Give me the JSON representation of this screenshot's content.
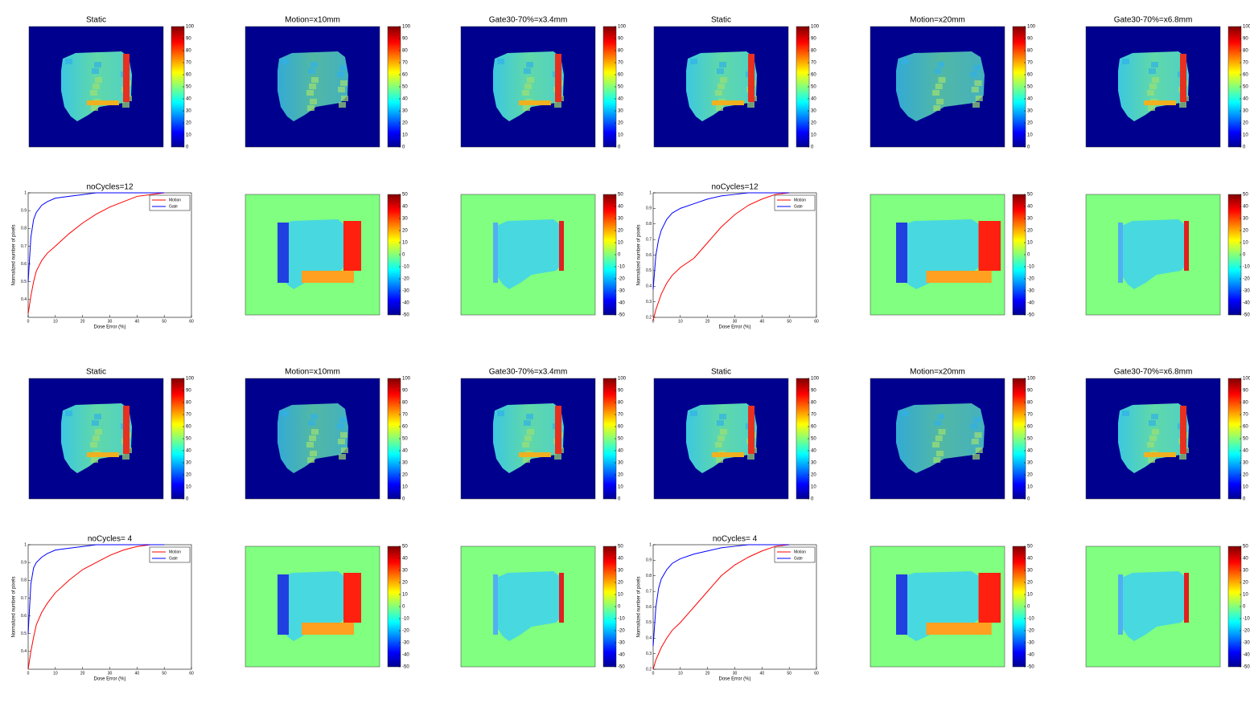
{
  "maps": [
    {
      "title": "Static",
      "scale": "dose"
    },
    {
      "title": "Motion=x10mm",
      "scale": "dose"
    },
    {
      "title": "Gate30-70%=x3.4mm",
      "scale": "dose"
    },
    {
      "title": "Static",
      "scale": "dose"
    },
    {
      "title": "Motion=x20mm",
      "scale": "dose"
    },
    {
      "title": "Gate30-70%=x6.8mm",
      "scale": "dose"
    },
    {
      "scale": "diff"
    },
    {
      "scale": "diff"
    },
    {
      "scale": "diff"
    },
    {
      "scale": "diff"
    },
    {
      "title": "Static",
      "scale": "dose"
    },
    {
      "title": "Motion=x10mm",
      "scale": "dose"
    },
    {
      "title": "Gate30-70%=x3.4mm",
      "scale": "dose"
    },
    {
      "title": "Static",
      "scale": "dose"
    },
    {
      "title": "Motion=x20mm",
      "scale": "dose"
    },
    {
      "title": "Gate30-70%=x6.8mm",
      "scale": "dose"
    },
    {
      "scale": "diff"
    },
    {
      "scale": "diff"
    },
    {
      "scale": "diff"
    },
    {
      "scale": "diff"
    }
  ],
  "colorbars": {
    "dose": {
      "ticks": [
        0,
        10,
        20,
        30,
        40,
        50,
        60,
        70,
        80,
        90,
        100
      ]
    },
    "diff": {
      "ticks": [
        -50,
        -40,
        -30,
        -20,
        -10,
        0,
        10,
        20,
        30,
        40,
        50
      ]
    }
  },
  "chart_data": [
    {
      "type": "line",
      "title": "noCycles=12",
      "x_label": "Dose Error (%)",
      "y_label": "Normalized number of pixels",
      "x": [
        0,
        1,
        2,
        3,
        5,
        7,
        10,
        15,
        20,
        25,
        30,
        35,
        40,
        45,
        50
      ],
      "series": [
        {
          "name": "Motion",
          "color": "#ff0000",
          "values": [
            0.32,
            0.42,
            0.5,
            0.56,
            0.62,
            0.66,
            0.7,
            0.77,
            0.83,
            0.88,
            0.92,
            0.95,
            0.98,
            0.99,
            1
          ]
        },
        {
          "name": "Gate",
          "color": "#0000ff",
          "values": [
            0.5,
            0.75,
            0.85,
            0.89,
            0.93,
            0.95,
            0.97,
            0.98,
            0.99,
            1,
            1,
            1,
            1,
            1,
            1
          ]
        }
      ],
      "xlim": [
        0,
        60
      ],
      "xticks": [
        0,
        10,
        20,
        30,
        40,
        50,
        60
      ],
      "ylim": [
        0.3,
        1
      ],
      "yticks": [
        0.4,
        0.5,
        0.6,
        0.7,
        0.8,
        0.9,
        1
      ],
      "legend": "upper right"
    },
    {
      "type": "line",
      "title": "noCycles=12",
      "x_label": "Dose Error (%)",
      "y_label": "Normalized number of pixels",
      "x": [
        0,
        1,
        2,
        3,
        5,
        7,
        10,
        15,
        20,
        25,
        30,
        35,
        40,
        45,
        50
      ],
      "series": [
        {
          "name": "Motion",
          "color": "#ff0000",
          "values": [
            0.18,
            0.25,
            0.3,
            0.35,
            0.42,
            0.47,
            0.52,
            0.58,
            0.68,
            0.78,
            0.86,
            0.92,
            0.96,
            0.99,
            1
          ]
        },
        {
          "name": "Gate",
          "color": "#0000ff",
          "values": [
            0.38,
            0.6,
            0.7,
            0.76,
            0.83,
            0.87,
            0.9,
            0.93,
            0.96,
            0.98,
            0.99,
            1,
            1,
            1,
            1
          ]
        }
      ],
      "xlim": [
        0,
        60
      ],
      "xticks": [
        0,
        10,
        20,
        30,
        40,
        50,
        60
      ],
      "ylim": [
        0.2,
        1
      ],
      "yticks": [
        0.2,
        0.3,
        0.4,
        0.5,
        0.6,
        0.7,
        0.8,
        0.9,
        1
      ],
      "legend": "upper right"
    },
    {
      "type": "line",
      "title": "noCycles= 4",
      "x_label": "Dose Error (%)",
      "y_label": "Normalized number of pixels",
      "x": [
        0,
        1,
        2,
        3,
        5,
        7,
        10,
        15,
        20,
        25,
        30,
        35,
        40,
        45,
        50
      ],
      "series": [
        {
          "name": "Motion",
          "color": "#ff0000",
          "values": [
            0.3,
            0.4,
            0.48,
            0.55,
            0.62,
            0.67,
            0.73,
            0.8,
            0.86,
            0.9,
            0.94,
            0.97,
            0.99,
            1,
            1
          ]
        },
        {
          "name": "Gate",
          "color": "#0000ff",
          "values": [
            0.5,
            0.78,
            0.87,
            0.9,
            0.93,
            0.95,
            0.97,
            0.98,
            0.99,
            1,
            1,
            1,
            1,
            1,
            1
          ]
        }
      ],
      "xlim": [
        0,
        60
      ],
      "xticks": [
        0,
        10,
        20,
        30,
        40,
        50,
        60
      ],
      "ylim": [
        0.3,
        1
      ],
      "yticks": [
        0.4,
        0.5,
        0.6,
        0.7,
        0.8,
        0.9,
        1
      ],
      "legend": "upper right"
    },
    {
      "type": "line",
      "title": "noCycles= 4",
      "x_label": "Dose Error (%)",
      "y_label": "Normalized number of pixels",
      "x": [
        0,
        1,
        2,
        3,
        5,
        7,
        10,
        15,
        20,
        25,
        30,
        35,
        40,
        45,
        50
      ],
      "series": [
        {
          "name": "Motion",
          "color": "#ff0000",
          "values": [
            0.2,
            0.26,
            0.3,
            0.34,
            0.4,
            0.45,
            0.5,
            0.6,
            0.7,
            0.8,
            0.87,
            0.92,
            0.96,
            0.99,
            1
          ]
        },
        {
          "name": "Gate",
          "color": "#0000ff",
          "values": [
            0.35,
            0.6,
            0.72,
            0.78,
            0.84,
            0.88,
            0.91,
            0.94,
            0.96,
            0.98,
            0.99,
            1,
            1,
            1,
            1
          ]
        }
      ],
      "xlim": [
        0,
        60
      ],
      "xticks": [
        0,
        10,
        20,
        30,
        40,
        50,
        60
      ],
      "ylim": [
        0.2,
        1
      ],
      "yticks": [
        0.2,
        0.3,
        0.4,
        0.5,
        0.6,
        0.7,
        0.8,
        0.9,
        1
      ],
      "legend": "upper right"
    }
  ]
}
